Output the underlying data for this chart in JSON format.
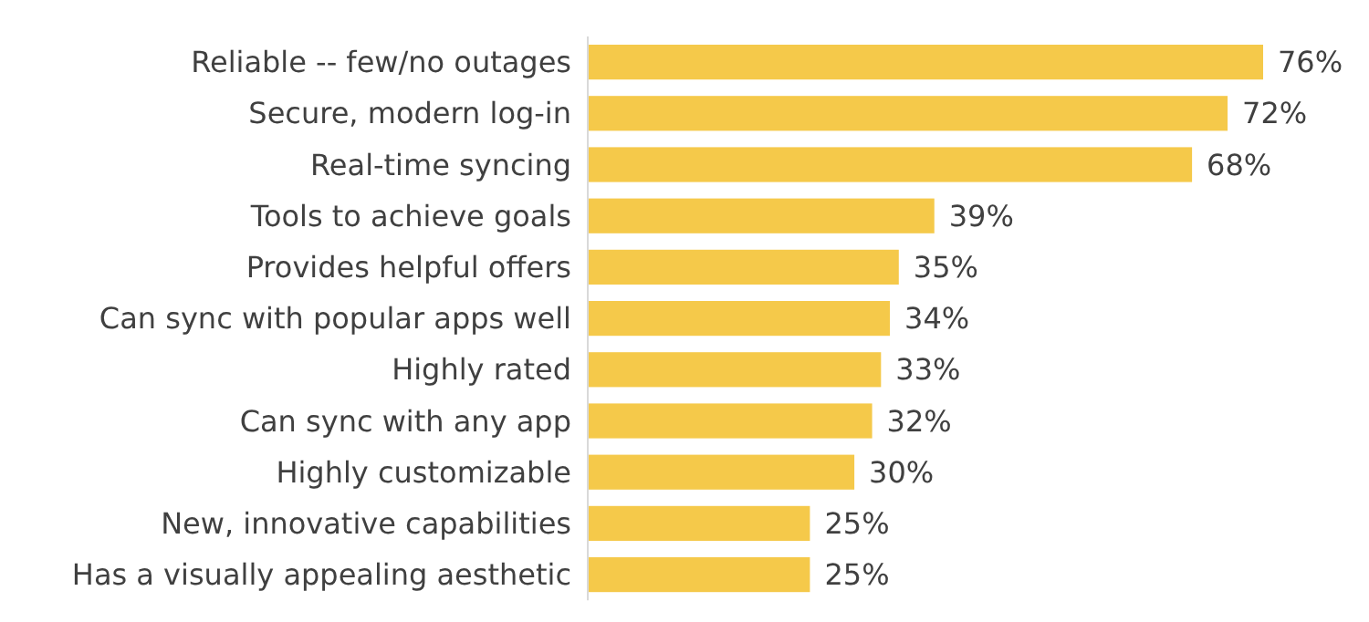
{
  "chart_data": {
    "type": "bar",
    "orientation": "horizontal",
    "categories": [
      "Reliable -- few/no outages",
      "Secure, modern log-in",
      "Real-time syncing",
      "Tools to achieve goals",
      "Provides helpful offers",
      "Can sync with popular apps well",
      "Highly rated",
      "Can sync with any app",
      "Highly customizable",
      "New, innovative capabilities",
      "Has a visually appealing aesthetic"
    ],
    "values": [
      76,
      72,
      68,
      39,
      35,
      34,
      33,
      32,
      30,
      25,
      25
    ],
    "value_labels": [
      "76%",
      "72%",
      "68%",
      "39%",
      "35%",
      "34%",
      "33%",
      "32%",
      "30%",
      "25%",
      "25%"
    ],
    "color": "#f5c94a"
  }
}
